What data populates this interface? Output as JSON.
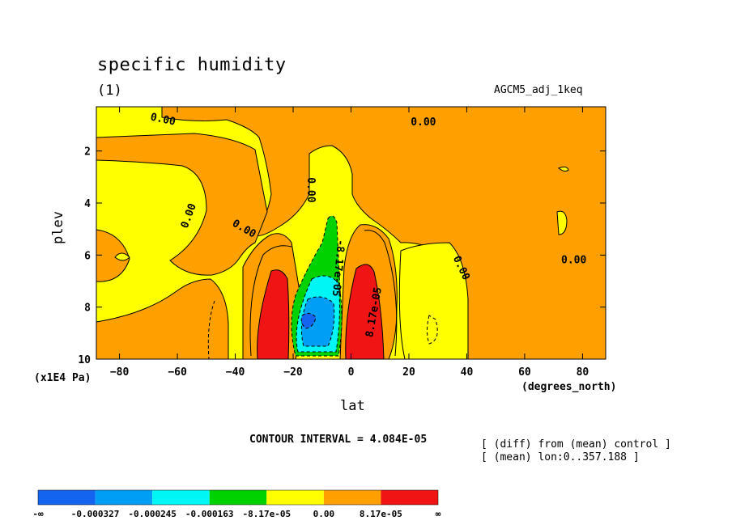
{
  "chart_data": {
    "type": "heatmap",
    "title": "specific humidity",
    "subtitle_left": "(1)",
    "subtitle_right": "AGCM5_adj_1keq",
    "xlabel": "lat",
    "ylabel": "plev",
    "x_units": "(degrees_north)",
    "y_units": "(x1E4 Pa)",
    "xlim": [
      -88,
      88
    ],
    "ylim": [
      10,
      0.3
    ],
    "x_ticks": [
      -80,
      -60,
      -40,
      -20,
      0,
      20,
      40,
      60,
      80
    ],
    "y_ticks": [
      2,
      4,
      6,
      8,
      10
    ],
    "contour_interval_text": "CONTOUR INTERVAL = 4.084E-05",
    "notes": [
      "[ (diff) from (mean) control ]",
      "[ (mean) lon:0..357.188 ]"
    ],
    "contour_labels": [
      {
        "text": "0.00",
        "x": -65,
        "y": 0.8,
        "angle": 12
      },
      {
        "text": "0.00",
        "x": 25,
        "y": 0.9,
        "angle": 0
      },
      {
        "text": "0.00",
        "x": -56,
        "y": 4.5,
        "angle": -70
      },
      {
        "text": "0.00",
        "x": -37,
        "y": 5.0,
        "angle": 30
      },
      {
        "text": "0.00",
        "x": -14,
        "y": 3.5,
        "angle": 90
      },
      {
        "text": "-8.17e-05",
        "x": -4.5,
        "y": 6.5,
        "angle": 95
      },
      {
        "text": "8.17e-05",
        "x": 8,
        "y": 8.2,
        "angle": -80
      },
      {
        "text": "0.00",
        "x": 38,
        "y": 6.5,
        "angle": 65
      },
      {
        "text": "0.00",
        "x": 77,
        "y": 6.2,
        "angle": 0
      }
    ],
    "colorbar": {
      "colors": [
        "#1464f0",
        "#009ff5",
        "#00f5f5",
        "#00d200",
        "#ffff00",
        "#ffa000",
        "#f01414"
      ],
      "labels": [
        "-∞",
        "-0.000327",
        "-0.000245",
        "-0.000163",
        "-8.17e-05",
        "0.00",
        "8.17e-05",
        "∞"
      ]
    }
  }
}
